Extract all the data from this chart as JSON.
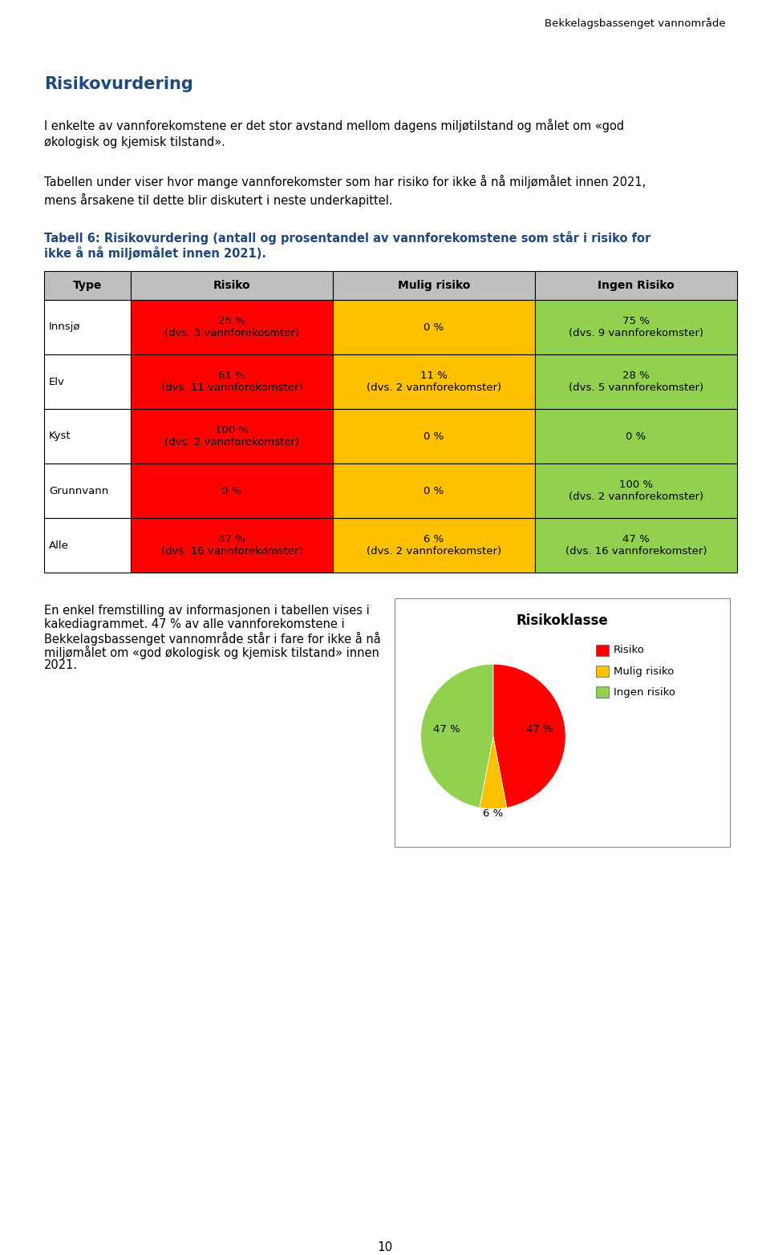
{
  "page_header": "Bekkelagsbassenget vannområde",
  "section_title": "Risikovurdering",
  "section_title_color": "#1F497D",
  "paragraph1": "I enkelte av vannforekomstene er det stor avstand mellom dagens miljøtilstand og målet om «god\nøkologisk og kjemisk tilstand».",
  "paragraph2": "Tabellen under viser hvor mange vannforekomster som har risiko for ikke å nå miljømålet innen 2021,\nmens årsakene til dette blir diskutert i neste underkapittel.",
  "table_caption_line1": "Tabell 6: Risikovurdering (antall og prosentandel av vannforekomstene som står i risiko for",
  "table_caption_line2": "ikke å nå miljømålet innen 2021).",
  "table_caption_color": "#1F497D",
  "table_headers": [
    "Type",
    "Risiko",
    "Mulig risiko",
    "Ingen Risiko"
  ],
  "table_rows": [
    {
      "type": "Innsjø",
      "risiko": "25 %\n(dvs. 3 vannforekosmter)",
      "mulig_risiko": "0 %",
      "ingen_risiko": "75 %\n(dvs. 9 vannforekomster)"
    },
    {
      "type": "Elv",
      "risiko": "61 %\n(dvs. 11 vannforekomster)",
      "mulig_risiko": "11 %\n(dvs. 2 vannforekomster)",
      "ingen_risiko": "28 %\n(dvs. 5 vannforekomster)"
    },
    {
      "type": "Kyst",
      "risiko": "100 %\n(dvs. 2 vannforekomster)",
      "mulig_risiko": "0 %",
      "ingen_risiko": "0 %"
    },
    {
      "type": "Grunnvann",
      "risiko": "0 %",
      "mulig_risiko": "0 %",
      "ingen_risiko": "100 %\n(dvs. 2 vannforekomster)"
    },
    {
      "type": "Alle",
      "risiko": "47 %\n(dvs. 16 vannforekomster)",
      "mulig_risiko": "6 %\n(dvs. 2 vannforekomster)",
      "ingen_risiko": "47 %\n(dvs. 16 vannforekomster)"
    }
  ],
  "color_risiko": "#FF0000",
  "color_mulig": "#FFC000",
  "color_ingen": "#92D050",
  "color_header_bg": "#BFBFBF",
  "paragraph3_lines": [
    "En enkel fremstilling av informasjonen i tabellen vises i",
    "kakediagrammet. 47 % av alle vannforekomstene i",
    "Bekkelagsbassenget vannområde står i fare for ikke å nå",
    "miljømålet om «god økologisk og kjemisk tilstand» innen",
    "2021."
  ],
  "pie_title": "Risikoklasse",
  "pie_values": [
    47,
    6,
    47
  ],
  "pie_colors": [
    "#FF0000",
    "#FFC000",
    "#92D050"
  ],
  "pie_labels": [
    "47 %",
    "6 %",
    "47 %"
  ],
  "pie_legend": [
    "Risiko",
    "Mulig risiko",
    "Ingen risiko"
  ],
  "pie_legend_colors": [
    "#FF0000",
    "#FFC000",
    "#92D050"
  ],
  "page_number": "10",
  "background_color": "#FFFFFF",
  "text_color": "#000000",
  "font_size_body": 10.5,
  "font_size_header": 15,
  "font_size_table": 9.5,
  "font_size_caption": 10.5
}
